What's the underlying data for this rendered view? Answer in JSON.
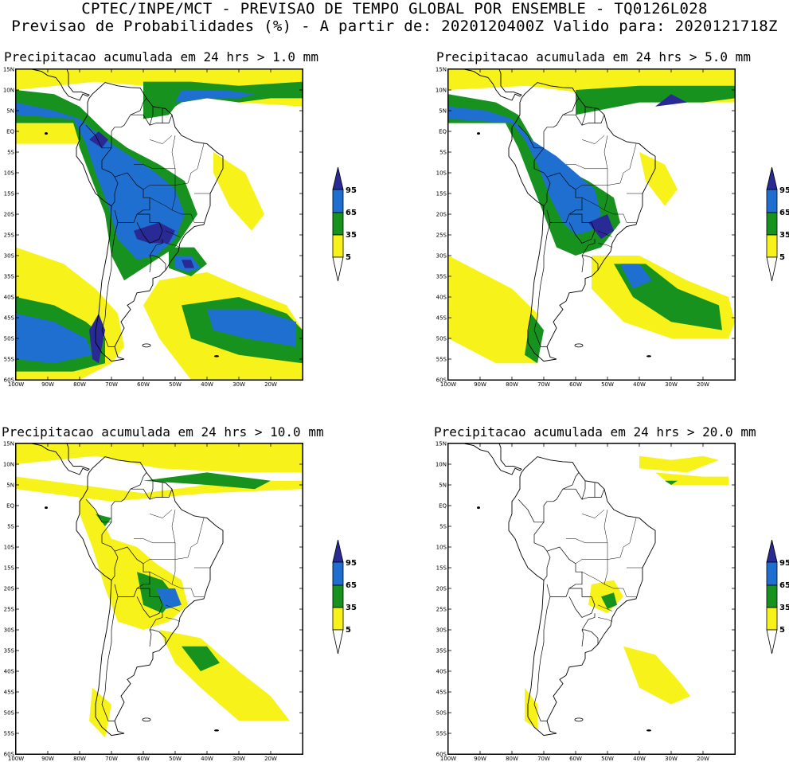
{
  "header": {
    "line1": "CPTEC/INPE/MCT - PREVISAO DE TEMPO GLOBAL POR ENSEMBLE - TQ0126L028",
    "line2": "Previsao de Probabilidades (%) -  A partir de: 2020120400Z  Valido para: 2020121718Z"
  },
  "lat_labels": [
    "15N",
    "10N",
    "5N",
    "EQ",
    "5S",
    "10S",
    "15S",
    "20S",
    "25S",
    "30S",
    "35S",
    "40S",
    "45S",
    "50S",
    "55S",
    "60S"
  ],
  "lon_labels": [
    "100W",
    "90W",
    "80W",
    "70W",
    "60W",
    "50W",
    "40W",
    "30W",
    "20W"
  ],
  "legend": {
    "labels": [
      "95",
      "65",
      "35",
      "5"
    ],
    "colors": {
      "p95": "#2a2a96",
      "p65": "#1f6fd0",
      "p35": "#17921f",
      "p5": "#f6f21a",
      "white": "#ffffff"
    }
  },
  "panels": [
    {
      "id": "p1",
      "title": "Precipitacao acumulada em 24 hrs > 1.0 mm"
    },
    {
      "id": "p2",
      "title": "Precipitacao acumulada em 24 hrs > 5.0 mm"
    },
    {
      "id": "p3",
      "title": "Precipitacao acumulada em 24 hrs > 10.0 mm"
    },
    {
      "id": "p4",
      "title": "Precipitacao acumulada em 24 hrs > 20.0 mm"
    }
  ]
}
